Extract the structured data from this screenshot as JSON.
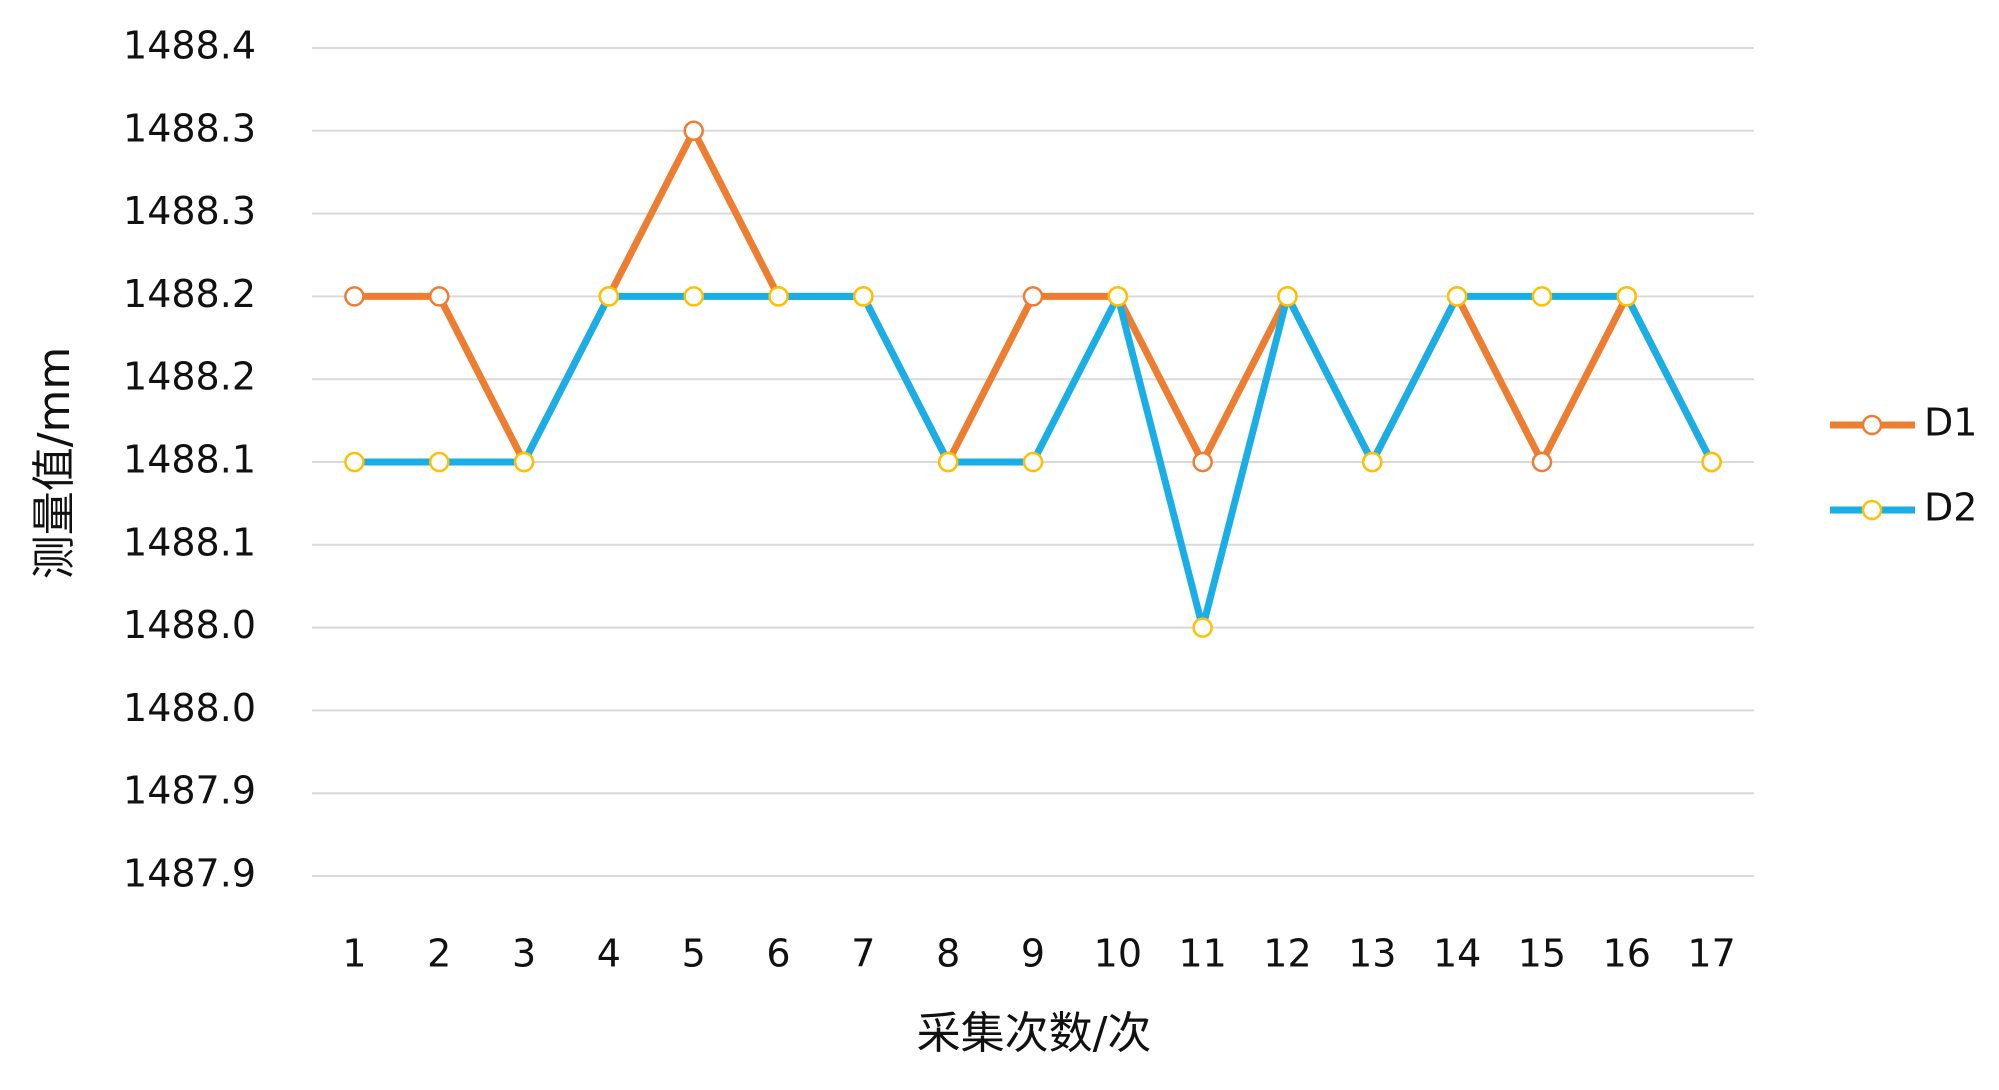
{
  "chart_data": {
    "type": "line",
    "x_label": "采集次数/次",
    "y_label": "测量值/mm",
    "categories": [
      "1",
      "2",
      "3",
      "4",
      "5",
      "6",
      "7",
      "8",
      "9",
      "10",
      "11",
      "12",
      "13",
      "14",
      "15",
      "16",
      "17"
    ],
    "series": [
      {
        "name": "D1",
        "color": "#ed7d31",
        "marker_color": "#ed7d31",
        "values": [
          1488.2,
          1488.2,
          1488.1,
          1488.2,
          1488.3,
          1488.2,
          1488.2,
          1488.1,
          1488.2,
          1488.2,
          1488.1,
          1488.2,
          1488.1,
          1488.2,
          1488.1,
          1488.2,
          1488.1
        ]
      },
      {
        "name": "D2",
        "color": "#1aaee6",
        "marker_color": "#ffc000",
        "values": [
          1488.1,
          1488.1,
          1488.1,
          1488.2,
          1488.2,
          1488.2,
          1488.2,
          1488.1,
          1488.1,
          1488.2,
          1488.0,
          1488.2,
          1488.1,
          1488.2,
          1488.2,
          1488.2,
          1488.1
        ]
      }
    ],
    "ylim": [
      1487.85,
      1488.35
    ],
    "yticks": [
      {
        "value": 1487.85,
        "label": "1487.9"
      },
      {
        "value": 1487.9,
        "label": "1487.9"
      },
      {
        "value": 1487.95,
        "label": "1488.0"
      },
      {
        "value": 1488.0,
        "label": "1488.0"
      },
      {
        "value": 1488.05,
        "label": "1488.1"
      },
      {
        "value": 1488.1,
        "label": "1488.1"
      },
      {
        "value": 1488.15,
        "label": "1488.2"
      },
      {
        "value": 1488.2,
        "label": "1488.2"
      },
      {
        "value": 1488.25,
        "label": "1488.3"
      },
      {
        "value": 1488.3,
        "label": "1488.3"
      },
      {
        "value": 1488.35,
        "label": "1488.4"
      }
    ],
    "grid": true,
    "legend": "right"
  }
}
